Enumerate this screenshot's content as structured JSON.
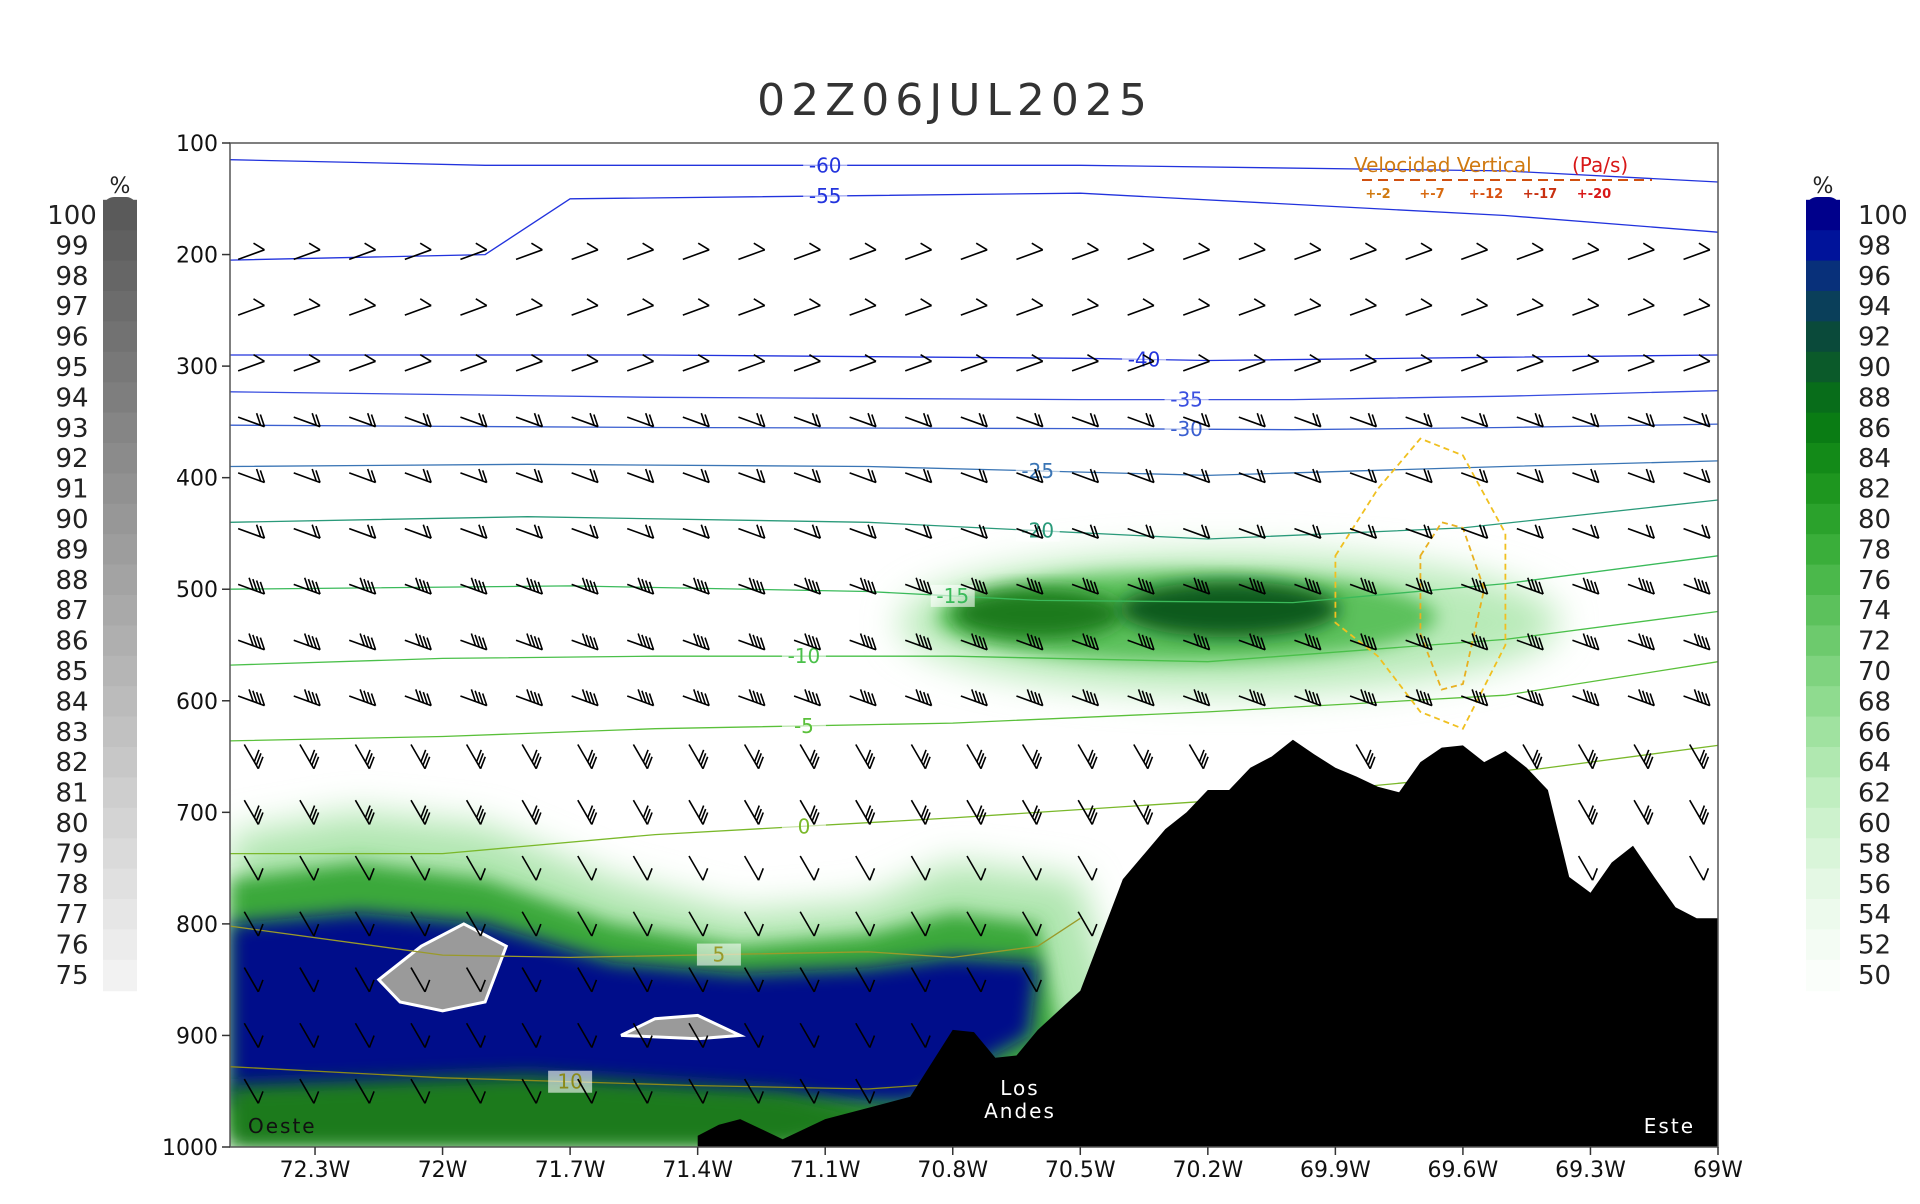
{
  "chart_data": {
    "type": "heatmap",
    "title": "02Z06JUL2025",
    "y_axis": {
      "ticks": [
        100,
        200,
        300,
        400,
        500,
        600,
        700,
        800,
        900,
        1000
      ],
      "ylim": [
        100,
        1000
      ],
      "inverted": true
    },
    "x_axis": {
      "ticks": [
        "72.3W",
        "72W",
        "71.7W",
        "71.4W",
        "71.1W",
        "70.8W",
        "70.5W",
        "70.2W",
        "69.9W",
        "69.6W",
        "69.3W",
        "69W"
      ],
      "tick_values": [
        -72.3,
        -72.0,
        -71.7,
        -71.4,
        -71.1,
        -70.8,
        -70.5,
        -70.2,
        -69.9,
        -69.6,
        -69.3,
        -69.0
      ],
      "xlim": [
        -72.5,
        -69.0
      ]
    },
    "colorbar_left": {
      "unit": "%",
      "labels": [
        "100",
        "99",
        "98",
        "97",
        "96",
        "95",
        "94",
        "93",
        "92",
        "91",
        "90",
        "89",
        "88",
        "87",
        "86",
        "85",
        "84",
        "83",
        "82",
        "81",
        "80",
        "79",
        "78",
        "77",
        "76",
        "75"
      ],
      "color_top": "#5a5a5a",
      "color_bottom": "#f2f2f2"
    },
    "colorbar_right": {
      "unit": "%",
      "labels": [
        "100",
        "98",
        "96",
        "94",
        "92",
        "90",
        "88",
        "86",
        "84",
        "82",
        "80",
        "78",
        "76",
        "74",
        "72",
        "70",
        "68",
        "66",
        "64",
        "62",
        "60",
        "58",
        "56",
        "54",
        "52",
        "50"
      ],
      "colors": [
        "#00008b",
        "#00139a",
        "#08307a",
        "#0a3f5a",
        "#0a4a3a",
        "#0b5a2a",
        "#086d1a",
        "#0a7c14",
        "#138a18",
        "#1e961f",
        "#2ba22c",
        "#3aae3a",
        "#4bb84b",
        "#5cc15c",
        "#6dca6d",
        "#7fd37f",
        "#8fdb8f",
        "#a0e2a0",
        "#b0e8b0",
        "#c0eec0",
        "#cdf2cd",
        "#d9f5d9",
        "#e4f8e4",
        "#edfaed",
        "#f4fcf4",
        "#fafefa"
      ]
    },
    "temperature_contours": {
      "unit": "degC",
      "lines": [
        {
          "label": "-60",
          "color": "#2233dd",
          "x": [
            -72.5,
            -71.9,
            -71.7,
            -70.5,
            -69.5,
            -69.0
          ],
          "p": [
            115,
            120,
            120,
            120,
            125,
            135
          ]
        },
        {
          "label": "-55",
          "color": "#2233dd",
          "x": [
            -72.5,
            -71.9,
            -71.7,
            -70.5,
            -69.5,
            -69.0
          ],
          "p": [
            205,
            200,
            150,
            145,
            165,
            180
          ]
        },
        {
          "label": "-40",
          "color": "#2233dd",
          "x": [
            -72.5,
            -71.5,
            -70.5,
            -70.2,
            -69.5,
            -69.0
          ],
          "p": [
            290,
            290,
            293,
            295,
            292,
            290
          ]
        },
        {
          "label": "-35",
          "color": "#3a4fe0",
          "x": [
            -72.5,
            -71.5,
            -70.5,
            -70.0,
            -69.5,
            -69.0
          ],
          "p": [
            323,
            328,
            330,
            330,
            327,
            322
          ]
        },
        {
          "label": "-30",
          "color": "#3a5fd0",
          "x": [
            -72.5,
            -71.5,
            -70.5,
            -70.0,
            -69.5,
            -69.0
          ],
          "p": [
            353,
            355,
            356,
            357,
            355,
            352
          ]
        },
        {
          "label": "-25",
          "color": "#3a75b5",
          "x": [
            -72.5,
            -71.8,
            -71.0,
            -70.2,
            -69.5,
            -69.0
          ],
          "p": [
            390,
            388,
            390,
            398,
            390,
            385
          ]
        },
        {
          "label": "-20",
          "color": "#2a9a7a",
          "x": [
            -72.5,
            -71.8,
            -71.0,
            -70.2,
            -69.6,
            -69.0
          ],
          "p": [
            440,
            435,
            440,
            455,
            445,
            420
          ]
        },
        {
          "label": "-15",
          "color": "#3aba5a",
          "x": [
            -72.5,
            -71.7,
            -71.0,
            -70.6,
            -70.0,
            -69.5,
            -69.0
          ],
          "p": [
            500,
            497,
            502,
            510,
            512,
            495,
            470
          ]
        },
        {
          "label": "-10",
          "color": "#4ac04a",
          "x": [
            -72.5,
            -72.0,
            -71.5,
            -70.8,
            -70.2,
            -69.5,
            -69.0
          ],
          "p": [
            568,
            562,
            560,
            560,
            565,
            545,
            520
          ]
        },
        {
          "label": "-5",
          "color": "#5ac03a",
          "x": [
            -72.5,
            -72.0,
            -71.5,
            -70.8,
            -70.2,
            -69.5,
            -69.0
          ],
          "p": [
            636,
            632,
            625,
            620,
            610,
            595,
            565
          ]
        },
        {
          "label": "0",
          "color": "#7ab82a",
          "x": [
            -72.5,
            -72.0,
            -71.5,
            -70.8,
            -70.2,
            -69.5,
            -69.0
          ],
          "p": [
            737,
            737,
            720,
            705,
            690,
            665,
            640
          ]
        },
        {
          "label": "5",
          "color": "#9a9a2a",
          "x": [
            -72.5,
            -72.0,
            -71.7,
            -71.0,
            -70.8,
            -70.6,
            -70.5
          ],
          "p": [
            802,
            828,
            830,
            825,
            830,
            820,
            795
          ]
        },
        {
          "label": "10",
          "color": "#8a8a1a",
          "x": [
            -72.5,
            -72.0,
            -71.4,
            -71.0,
            -70.7
          ],
          "p": [
            928,
            938,
            945,
            948,
            940
          ]
        }
      ]
    },
    "vertical_velocity": {
      "title": "Velocidad Vertical",
      "unit": "(Pa/s)",
      "legend_items": [
        "+-2",
        "+-7",
        "+-12",
        "+-17",
        "+-20"
      ],
      "contours": [
        {
          "label": "-2",
          "color": "#f0c020",
          "x": [
            -69.9,
            -69.8,
            -69.7,
            -69.6,
            -69.5,
            -69.5,
            -69.6,
            -69.7,
            -69.8,
            -69.9,
            -69.9
          ],
          "p": [
            470,
            410,
            365,
            380,
            450,
            550,
            625,
            610,
            560,
            530,
            470
          ]
        },
        {
          "label": "-7",
          "color": "#e8b020",
          "x": [
            -69.7,
            -69.65,
            -69.6,
            -69.55,
            -69.6,
            -69.65,
            -69.7,
            -69.7
          ],
          "p": [
            470,
            440,
            445,
            500,
            585,
            590,
            540,
            470
          ]
        }
      ]
    },
    "cloud_fraction_shading": {
      "unit": "%",
      "levels": [
        50,
        60,
        70,
        80,
        90,
        100
      ]
    },
    "terrain": {
      "label": "Los Andes",
      "x": [
        -71.4,
        -71.35,
        -71.3,
        -71.2,
        -71.1,
        -71.0,
        -70.9,
        -70.8,
        -70.75,
        -70.7,
        -70.65,
        -70.6,
        -70.5,
        -70.4,
        -70.3,
        -70.25,
        -70.2,
        -70.15,
        -70.1,
        -70.05,
        -70.0,
        -69.95,
        -69.9,
        -69.85,
        -69.8,
        -69.75,
        -69.7,
        -69.65,
        -69.6,
        -69.55,
        -69.5,
        -69.45,
        -69.4,
        -69.35,
        -69.3,
        -69.25,
        -69.2,
        -69.15,
        -69.1,
        -69.05,
        -69.0
      ],
      "p": [
        990,
        980,
        975,
        993,
        975,
        965,
        955,
        895,
        897,
        920,
        918,
        895,
        860,
        760,
        715,
        700,
        680,
        680,
        660,
        650,
        635,
        648,
        660,
        668,
        677,
        682,
        655,
        642,
        640,
        655,
        645,
        660,
        680,
        758,
        772,
        745,
        730,
        758,
        785,
        795,
        795
      ]
    },
    "side_labels": {
      "west": "Oeste",
      "east": "Este"
    },
    "wind_barbs": "station-model wind barbs at every grid point (westerly, strengthening with height)"
  }
}
